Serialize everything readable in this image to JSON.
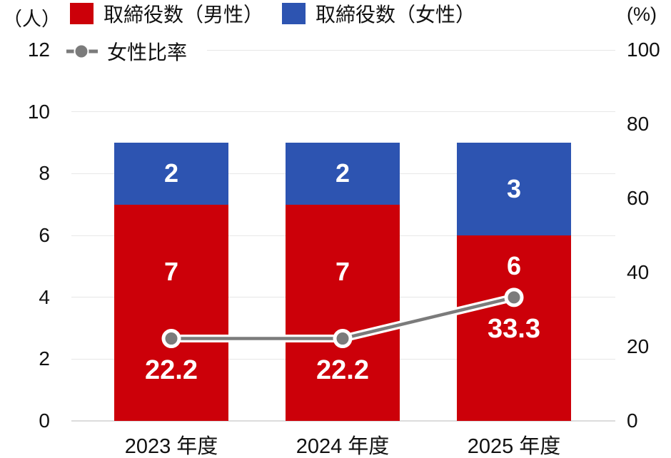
{
  "chart_data": {
    "type": "bar",
    "subtype": "stacked-bar-with-line",
    "title": "",
    "categories": [
      "2023 年度",
      "2024 年度",
      "2025 年度"
    ],
    "series": [
      {
        "name": "取締役数（男性）",
        "type": "bar",
        "stack": "directors",
        "axis": "left",
        "color": "#cc0009",
        "values": [
          7,
          7,
          6
        ]
      },
      {
        "name": "取締役数（女性）",
        "type": "bar",
        "stack": "directors",
        "axis": "left",
        "color": "#2d54b1",
        "values": [
          2,
          2,
          3
        ]
      },
      {
        "name": "女性比率",
        "type": "line",
        "axis": "right",
        "color": "#7b7b7b",
        "values": [
          22.2,
          22.2,
          33.3
        ],
        "value_labels": [
          "22.2",
          "22.2",
          "33.3"
        ]
      }
    ],
    "left_axis": {
      "unit_label": "（人）",
      "min": 0,
      "max": 12,
      "ticks": [
        0,
        2,
        4,
        6,
        8,
        10,
        12
      ]
    },
    "right_axis": {
      "unit_label": "(%)",
      "min": 0,
      "max": 100,
      "ticks": [
        0,
        20,
        40,
        60,
        80,
        100
      ]
    },
    "grid": "horizontal-at-left-ticks",
    "legend_position": "top-left-two-rows",
    "colors": {
      "grid": "#e7e7e7",
      "baseline": "#dcdcdc",
      "text": "#111111",
      "bar_label": "#ffffff"
    }
  }
}
